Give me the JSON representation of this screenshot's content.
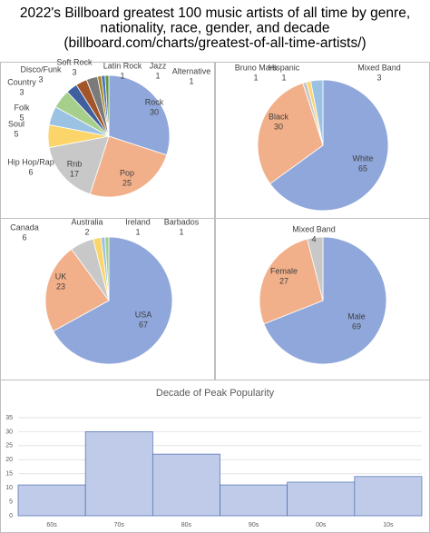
{
  "title": "2022's Billboard greatest 100 music artists of all time by genre, nationality, race, gender, and decade (billboard.com/charts/greatest-of-all-time-artists/)",
  "chart_data": [
    {
      "type": "pie",
      "categories": [
        "Rock",
        "Pop",
        "Rnb",
        "Hip Hop/Rap",
        "Soul",
        "Folk",
        "Country",
        "Disco/Funk",
        "Soft Rock",
        "Latin Rock",
        "Jazz",
        "Alternative"
      ],
      "values": [
        30,
        25,
        17,
        6,
        5,
        5,
        3,
        3,
        3,
        1,
        1,
        1
      ],
      "colors": [
        "#8fa7da",
        "#f2b08a",
        "#c8c8c8",
        "#fbd56a",
        "#9cc2e3",
        "#a7cf8c",
        "#3f5f9e",
        "#a3552a",
        "#7a7a7a",
        "#a48520",
        "#4c74bc",
        "#5f9742"
      ]
    },
    {
      "type": "pie",
      "categories": [
        "White",
        "Black",
        "Bruno Mars",
        "Hispanic",
        "Mixed Band"
      ],
      "values": [
        65,
        30,
        1,
        1,
        3
      ],
      "colors": [
        "#8fa7da",
        "#f2b08a",
        "#c8c8c8",
        "#fbd56a",
        "#9cc2e3"
      ]
    },
    {
      "type": "pie",
      "categories": [
        "USA",
        "UK",
        "Canada",
        "Australia",
        "Ireland",
        "Barbados"
      ],
      "values": [
        67,
        23,
        6,
        2,
        1,
        1
      ],
      "colors": [
        "#8fa7da",
        "#f2b08a",
        "#c8c8c8",
        "#fbd56a",
        "#9cc2e3",
        "#a7cf8c"
      ]
    },
    {
      "type": "pie",
      "categories": [
        "Male",
        "Female",
        "Mixed Band"
      ],
      "values": [
        69,
        27,
        4
      ],
      "colors": [
        "#8fa7da",
        "#f2b08a",
        "#c8c8c8"
      ]
    },
    {
      "type": "bar",
      "title": "Decade of Peak Popularity",
      "categories": [
        "60s",
        "70s",
        "80s",
        "90s",
        "00s",
        "10s"
      ],
      "values": [
        11,
        30,
        22,
        11,
        12,
        14
      ],
      "color": "#bfcbe8",
      "ylim": [
        0,
        35
      ],
      "yticks": [
        0,
        5,
        10,
        15,
        20,
        25,
        30,
        35
      ],
      "grid": true
    }
  ]
}
